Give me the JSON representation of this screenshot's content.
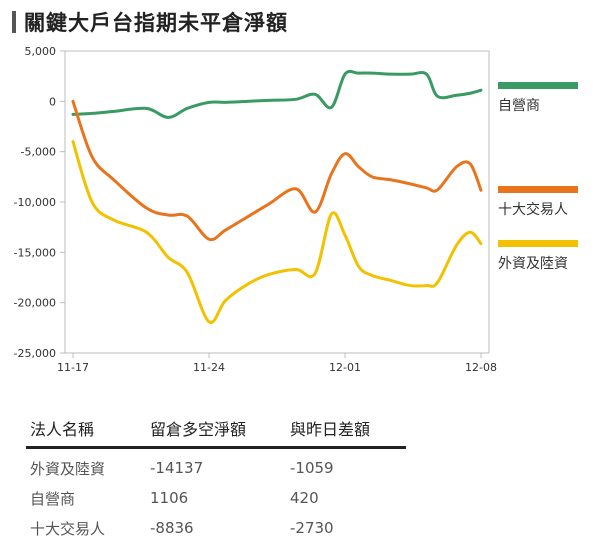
{
  "title": "關鍵大戶台指期未平倉淨額",
  "colors": {
    "green": "#3a9a64",
    "orange": "#e8741e",
    "yellow": "#f2c200"
  },
  "chart_data": {
    "type": "line",
    "ylim": [
      -25000,
      5000
    ],
    "yticks": [
      5000,
      0,
      -5000,
      -10000,
      -15000,
      -20000,
      -25000
    ],
    "ytick_labels": [
      "5,000",
      "0",
      "-5,000",
      "-10,000",
      "-15,000",
      "-20,000",
      "-25,000"
    ],
    "xlim": [
      0,
      15
    ],
    "xticks": [
      0,
      5,
      10,
      15
    ],
    "xtick_labels": [
      "11-17",
      "11-24",
      "12-01",
      "12-08"
    ],
    "grid": false,
    "legend": "right",
    "series": [
      {
        "name": "自營商",
        "color": "#3a9a64",
        "x": [
          0,
          0.7,
          1.5,
          2.7,
          3.5,
          4.2,
          5.0,
          5.6,
          6.4,
          7.2,
          8.2,
          8.9,
          9.5,
          10.0,
          10.5,
          11.0,
          11.7,
          12.4,
          13.0,
          13.4,
          14.1,
          14.6,
          15.0
        ],
        "y": [
          -1300,
          -1200,
          -1000,
          -700,
          -1600,
          -700,
          -100,
          -100,
          0,
          100,
          200,
          700,
          -600,
          2700,
          2800,
          2800,
          2700,
          2700,
          2700,
          500,
          600,
          800,
          1106
        ]
      },
      {
        "name": "十大交易人",
        "color": "#e8741e",
        "x": [
          0,
          0.7,
          1.5,
          2.7,
          3.5,
          4.2,
          5.0,
          5.6,
          6.4,
          7.2,
          8.2,
          8.9,
          9.5,
          10.0,
          10.5,
          11.0,
          11.7,
          12.4,
          13.0,
          13.4,
          14.1,
          14.6,
          15.0
        ],
        "y": [
          0,
          -5500,
          -7800,
          -10600,
          -11300,
          -11400,
          -13700,
          -12800,
          -11500,
          -10200,
          -8700,
          -11000,
          -7200,
          -5200,
          -6500,
          -7500,
          -7800,
          -8200,
          -8600,
          -8800,
          -6500,
          -6200,
          -8836
        ]
      },
      {
        "name": "外資及陸資",
        "color": "#f2c200",
        "x": [
          0,
          0.7,
          1.5,
          2.7,
          3.5,
          4.2,
          5.0,
          5.6,
          6.4,
          7.2,
          8.2,
          8.9,
          9.5,
          10.0,
          10.5,
          11.0,
          11.7,
          12.4,
          13.0,
          13.4,
          14.1,
          14.6,
          15.0
        ],
        "y": [
          -4000,
          -10000,
          -11800,
          -13000,
          -15500,
          -17000,
          -21900,
          -19800,
          -18200,
          -17200,
          -16700,
          -17100,
          -11200,
          -13300,
          -16400,
          -17300,
          -17800,
          -18300,
          -18300,
          -18000,
          -14300,
          -13000,
          -14137
        ]
      }
    ]
  },
  "legend": [
    {
      "label": "自營商",
      "color": "#3a9a64"
    },
    {
      "label": "十大交易人",
      "color": "#e8741e"
    },
    {
      "label": "外資及陸資",
      "color": "#f2c200"
    }
  ],
  "table": {
    "headers": [
      "法人名稱",
      "留倉多空淨額",
      "與昨日差額"
    ],
    "rows": [
      [
        "外資及陸資",
        "-14137",
        "-1059"
      ],
      [
        "自營商",
        "1106",
        "420"
      ],
      [
        "十大交易人",
        "-8836",
        "-2730"
      ]
    ]
  }
}
